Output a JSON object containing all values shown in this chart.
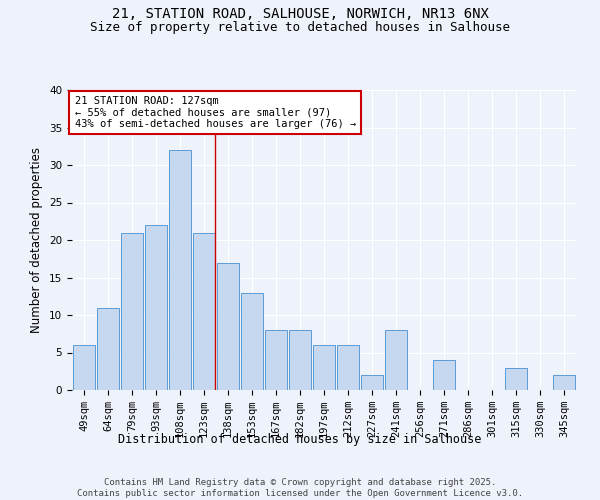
{
  "title": "21, STATION ROAD, SALHOUSE, NORWICH, NR13 6NX",
  "subtitle": "Size of property relative to detached houses in Salhouse",
  "xlabel": "Distribution of detached houses by size in Salhouse",
  "ylabel": "Number of detached properties",
  "categories": [
    "49sqm",
    "64sqm",
    "79sqm",
    "93sqm",
    "108sqm",
    "123sqm",
    "138sqm",
    "153sqm",
    "167sqm",
    "182sqm",
    "197sqm",
    "212sqm",
    "227sqm",
    "241sqm",
    "256sqm",
    "271sqm",
    "286sqm",
    "301sqm",
    "315sqm",
    "330sqm",
    "345sqm"
  ],
  "values": [
    6,
    11,
    21,
    22,
    32,
    21,
    17,
    13,
    8,
    8,
    6,
    6,
    2,
    8,
    0,
    4,
    0,
    0,
    3,
    0,
    2
  ],
  "bar_color": "#c5d8f0",
  "bar_edge_color": "#5b9bd5",
  "background_color": "#eef2fa",
  "grid_color": "#ffffff",
  "annotation_text": "21 STATION ROAD: 127sqm\n← 55% of detached houses are smaller (97)\n43% of semi-detached houses are larger (76) →",
  "annotation_box_color": "#ffffff",
  "annotation_box_edge_color": "#cc0000",
  "vline_color": "#cc0000",
  "vline_x_index": 5,
  "ylim": [
    0,
    40
  ],
  "yticks": [
    0,
    5,
    10,
    15,
    20,
    25,
    30,
    35,
    40
  ],
  "footer": "Contains HM Land Registry data © Crown copyright and database right 2025.\nContains public sector information licensed under the Open Government Licence v3.0.",
  "title_fontsize": 10,
  "subtitle_fontsize": 9,
  "xlabel_fontsize": 8.5,
  "ylabel_fontsize": 8.5,
  "tick_fontsize": 7.5,
  "annotation_fontsize": 7.5,
  "footer_fontsize": 6.5
}
